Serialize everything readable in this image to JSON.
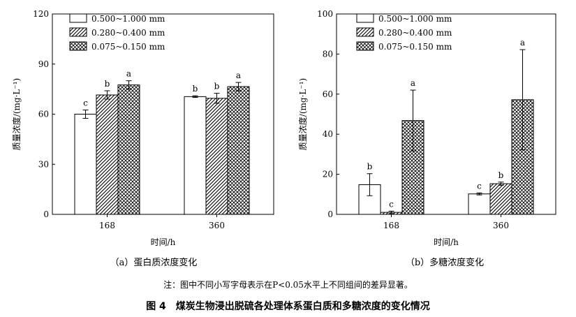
{
  "figure": {
    "note": "注：图中不同小写字母表示在P<0.05水平上不同组间的差异显著。",
    "caption": "图 4　煤炭生物浸出脱硫各处理体系蛋白质和多糖浓度的变化情况"
  },
  "chart_data": [
    {
      "type": "bar",
      "subtitle": "（a）蛋白质浓度变化",
      "xlabel": "时间/h",
      "ylabel": "质量浓度/(mg·L⁻¹)",
      "categories": [
        "168",
        "360"
      ],
      "ylim": [
        0,
        120
      ],
      "yticks": [
        0,
        30,
        60,
        90,
        120
      ],
      "legend_position": "top-left",
      "series": [
        {
          "name": "0.500~1.000 mm",
          "pattern": "none",
          "values": [
            60,
            70.5
          ],
          "errors": [
            2.5,
            0.5
          ],
          "letters": [
            "c",
            "b"
          ]
        },
        {
          "name": "0.280~0.400 mm",
          "pattern": "hatch",
          "values": [
            71.5,
            69.5
          ],
          "errors": [
            2.5,
            3
          ],
          "letters": [
            "b",
            "b"
          ]
        },
        {
          "name": "0.075~0.150 mm",
          "pattern": "cross",
          "values": [
            77.5,
            76.5
          ],
          "errors": [
            2.5,
            2.5
          ],
          "letters": [
            "a",
            "a"
          ]
        }
      ]
    },
    {
      "type": "bar",
      "subtitle": "（b）多糖浓度变化",
      "xlabel": "时间/h",
      "ylabel": "质量浓度/(mg·L⁻¹)",
      "categories": [
        "168",
        "360"
      ],
      "ylim": [
        0,
        100
      ],
      "yticks": [
        0,
        20,
        40,
        60,
        80,
        100
      ],
      "legend_position": "top-left",
      "series": [
        {
          "name": "0.500~1.000 mm",
          "pattern": "none",
          "values": [
            14.8,
            10.2
          ],
          "errors": [
            5.5,
            0.5
          ],
          "letters": [
            "b",
            "c"
          ]
        },
        {
          "name": "0.280~0.400 mm",
          "pattern": "hatch",
          "values": [
            1.0,
            15.3
          ],
          "errors": [
            0.6,
            0.8
          ],
          "letters": [
            "c",
            "b"
          ]
        },
        {
          "name": "0.075~0.150 mm",
          "pattern": "cross",
          "values": [
            46.8,
            57.2
          ],
          "errors": [
            15.2,
            25
          ],
          "letters": [
            "a",
            "a"
          ]
        }
      ]
    }
  ]
}
